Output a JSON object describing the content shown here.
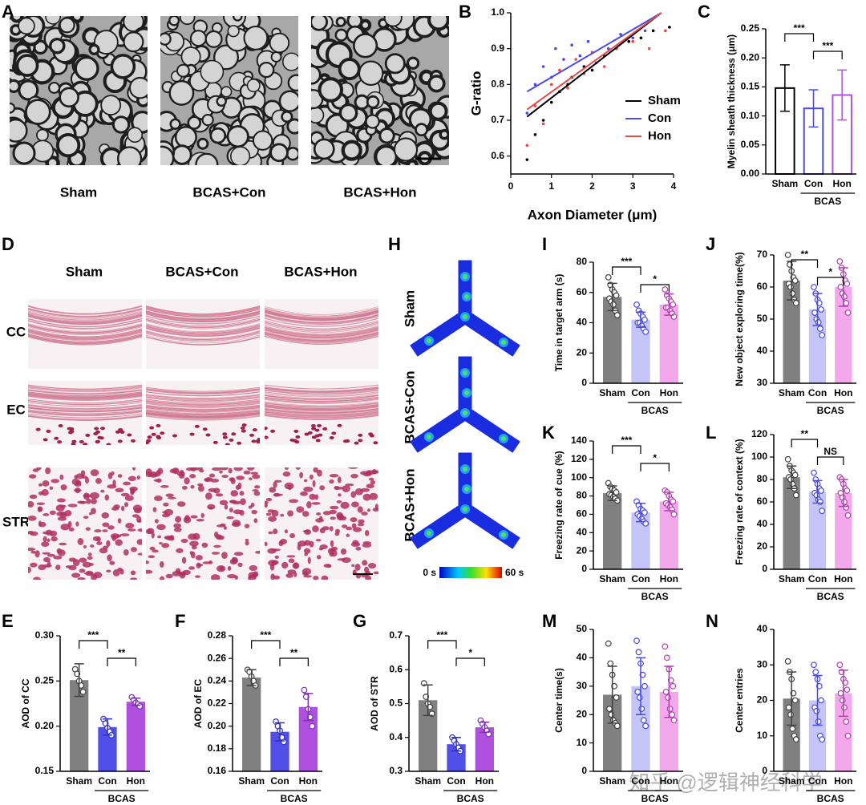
{
  "chart_data": [
    {
      "type": "scatter",
      "panel": "B",
      "xlabel": "Axon Diameter (μm)",
      "ylabel": "G-ratio",
      "xlim": [
        0,
        4
      ],
      "xticks": [
        0,
        1,
        2,
        3,
        4
      ],
      "ylim": [
        0.55,
        1.0
      ],
      "yticks": [
        0.6,
        0.7,
        0.8,
        0.9,
        {
          "value": 1.0,
          "label": "1.0"
        }
      ],
      "series": [
        {
          "name": "Sham",
          "color": "#000000",
          "x": [
            0.4,
            0.6,
            0.8,
            1.0,
            1.2,
            1.4,
            1.5,
            1.8,
            2.0,
            2.3,
            2.6,
            2.9,
            3.2,
            3.5,
            3.9
          ],
          "y": [
            0.59,
            0.66,
            0.7,
            0.75,
            0.78,
            0.8,
            0.82,
            0.85,
            0.84,
            0.88,
            0.9,
            0.92,
            0.93,
            0.95,
            0.96
          ],
          "fit_x": [
            0.4,
            3.7
          ],
          "fit_y": [
            0.71,
            1.0
          ]
        },
        {
          "name": "Con",
          "color": "#4a4ae8",
          "x": [
            0.4,
            0.6,
            0.8,
            1.0,
            1.1,
            1.3,
            1.5,
            1.7,
            1.9,
            2.1,
            2.4,
            2.7,
            3.0,
            3.3
          ],
          "y": [
            0.72,
            0.8,
            0.85,
            0.82,
            0.9,
            0.87,
            0.91,
            0.88,
            0.92,
            0.86,
            0.9,
            0.94,
            0.93,
            0.95
          ],
          "fit_x": [
            0.4,
            3.7
          ],
          "fit_y": [
            0.78,
            1.0
          ]
        },
        {
          "name": "Hon",
          "color": "#e84a4a",
          "x": [
            0.4,
            0.6,
            0.8,
            1.0,
            1.2,
            1.4,
            1.6,
            1.8,
            2.0,
            2.3,
            2.6,
            3.0,
            3.4,
            3.8
          ],
          "y": [
            0.63,
            0.74,
            0.69,
            0.8,
            0.84,
            0.79,
            0.87,
            0.83,
            0.89,
            0.85,
            0.9,
            0.92,
            0.9,
            0.95
          ],
          "fit_x": [
            0.4,
            3.7
          ],
          "fit_y": [
            0.73,
            1.0
          ]
        }
      ]
    },
    {
      "type": "bar",
      "panel": "C",
      "ylabel": "Myelin sheath thickness (μm)",
      "style": "outline",
      "categories": [
        "Sham",
        "Con",
        "Hon"
      ],
      "group_label": "BCAS",
      "values": [
        0.148,
        0.113,
        0.136
      ],
      "errors": [
        0.04,
        0.032,
        0.043
      ],
      "colors": [
        "#000000",
        "#4a4ae8",
        "#b050e0"
      ],
      "edge_colors": [
        "#000000",
        "#4a4ae8",
        "#b050e0"
      ],
      "ylim": [
        0,
        0.25
      ],
      "yticks": [
        {
          "value": 0,
          "label": "0.00"
        },
        {
          "value": 0.05,
          "label": "0.05"
        },
        {
          "value": 0.1,
          "label": "0.10"
        },
        {
          "value": 0.15,
          "label": "0.15"
        },
        {
          "value": 0.2,
          "label": "0.20"
        },
        {
          "value": 0.25,
          "label": "0.25"
        }
      ],
      "significance": [
        "***",
        "***"
      ]
    },
    {
      "type": "bar",
      "panel": "I",
      "ylabel": "Time in target arm (s)",
      "style": "filled",
      "categories": [
        "Sham",
        "Con",
        "Hon"
      ],
      "group_label": "BCAS",
      "values": [
        57,
        42,
        52
      ],
      "errors": [
        9,
        5,
        7
      ],
      "points": [
        [
          70,
          65,
          62,
          60,
          58,
          56,
          54,
          52,
          48,
          45
        ],
        [
          52,
          48,
          46,
          44,
          42,
          40,
          40,
          38,
          36,
          34
        ],
        [
          62,
          58,
          56,
          54,
          52,
          50,
          50,
          48,
          46,
          44
        ]
      ],
      "colors": [
        "#808080",
        "#c4c4f8",
        "#f4a8ec"
      ],
      "edge_colors": [
        "#404040",
        "#4a4ae0",
        "#b040b0"
      ],
      "ylim": [
        0,
        80
      ],
      "yticks": [
        0,
        20,
        40,
        60,
        80
      ],
      "significance": [
        "***",
        "*"
      ]
    },
    {
      "type": "bar",
      "panel": "J",
      "ylabel": "New object exploring time(%)",
      "style": "filled",
      "categories": [
        "Sham",
        "Con",
        "Hon"
      ],
      "group_label": "BCAS",
      "values": [
        62,
        53,
        60
      ],
      "errors": [
        6,
        5,
        6
      ],
      "points": [
        [
          70,
          67,
          65,
          63,
          62,
          61,
          60,
          58,
          56,
          55
        ],
        [
          60,
          58,
          56,
          55,
          53,
          52,
          50,
          49,
          47,
          45
        ],
        [
          68,
          66,
          64,
          62,
          61,
          60,
          58,
          57,
          55,
          52
        ]
      ],
      "colors": [
        "#808080",
        "#c4c4f8",
        "#f4a8ec"
      ],
      "edge_colors": [
        "#404040",
        "#4a4ae0",
        "#b040b0"
      ],
      "ylim": [
        30,
        70
      ],
      "yticks": [
        30,
        40,
        50,
        60,
        70
      ],
      "significance": [
        "**",
        "*"
      ]
    },
    {
      "type": "bar",
      "panel": "K",
      "ylabel": "Freezing rate of cue (%)",
      "style": "filled",
      "categories": [
        "Sham",
        "Con",
        "Hon"
      ],
      "group_label": "BCAS",
      "values": [
        83,
        62,
        74
      ],
      "errors": [
        8,
        10,
        10
      ],
      "points": [
        [
          94,
          90,
          88,
          86,
          84,
          82,
          81,
          79,
          77,
          75
        ],
        [
          74,
          70,
          66,
          64,
          62,
          60,
          58,
          55,
          52,
          50
        ],
        [
          86,
          84,
          80,
          76,
          74,
          72,
          70,
          68,
          65,
          60
        ]
      ],
      "colors": [
        "#808080",
        "#c4c4f8",
        "#f4a8ec"
      ],
      "edge_colors": [
        "#404040",
        "#4a4ae0",
        "#b040b0"
      ],
      "ylim": [
        0,
        140
      ],
      "yticks": [
        0,
        20,
        40,
        60,
        80,
        100,
        120,
        140
      ],
      "significance": [
        "***",
        "*"
      ]
    },
    {
      "type": "bar",
      "panel": "L",
      "ylabel": "Freezing rate of context (%)",
      "style": "filled",
      "categories": [
        "Sham",
        "Con",
        "Hon"
      ],
      "group_label": "BCAS",
      "values": [
        82,
        69,
        68
      ],
      "errors": [
        10,
        10,
        12
      ],
      "points": [
        [
          98,
          92,
          88,
          86,
          84,
          82,
          80,
          76,
          72,
          66
        ],
        [
          86,
          80,
          76,
          72,
          70,
          68,
          66,
          62,
          60,
          52
        ],
        [
          82,
          80,
          76,
          72,
          70,
          68,
          64,
          60,
          55,
          48
        ]
      ],
      "colors": [
        "#808080",
        "#c4c4f8",
        "#f4a8ec"
      ],
      "edge_colors": [
        "#404040",
        "#4a4ae0",
        "#b040b0"
      ],
      "ylim": [
        0,
        120
      ],
      "yticks": [
        0,
        20,
        40,
        60,
        80,
        100,
        120
      ],
      "significance": [
        "**",
        "NS"
      ]
    },
    {
      "type": "bar",
      "panel": "E",
      "ylabel": "AOD of CC",
      "style": "filled",
      "categories": [
        "Sham",
        "Con",
        "Hon"
      ],
      "group_label": "BCAS",
      "values": [
        0.251,
        0.199,
        0.227
      ],
      "errors": [
        0.018,
        0.009,
        0.004
      ],
      "points": [
        [
          0.263,
          0.258,
          0.25,
          0.245,
          0.238
        ],
        [
          0.208,
          0.203,
          0.198,
          0.194,
          0.19
        ],
        [
          0.232,
          0.229,
          0.226,
          0.224,
          0.222
        ]
      ],
      "colors": [
        "#808080",
        "#5050e8",
        "#b050e0"
      ],
      "edge_colors": [
        "#404040",
        "#3030c0",
        "#8030b0"
      ],
      "ylim": [
        0.15,
        0.3
      ],
      "yticks": [
        0.15,
        {
          "value": 0.2,
          "label": "0.20"
        },
        0.25,
        {
          "value": 0.3,
          "label": "0.30"
        }
      ],
      "significance": [
        "***",
        "**"
      ]
    },
    {
      "type": "bar",
      "panel": "F",
      "ylabel": "AOD of EC",
      "style": "filled",
      "categories": [
        "Sham",
        "Con",
        "Hon"
      ],
      "group_label": "BCAS",
      "values": [
        0.243,
        0.195,
        0.217
      ],
      "errors": [
        0.007,
        0.008,
        0.012
      ],
      "points": [
        [
          0.25,
          0.248,
          0.244,
          0.24,
          0.236
        ],
        [
          0.204,
          0.2,
          0.196,
          0.19,
          0.186
        ],
        [
          0.232,
          0.226,
          0.215,
          0.208,
          0.2
        ]
      ],
      "colors": [
        "#808080",
        "#5050e8",
        "#b050e0"
      ],
      "edge_colors": [
        "#404040",
        "#3030c0",
        "#8030b0"
      ],
      "ylim": [
        0.16,
        0.28
      ],
      "yticks": [
        0.16,
        0.18,
        {
          "value": 0.2,
          "label": "0.20"
        },
        0.22,
        0.24,
        0.26,
        0.28
      ],
      "significance": [
        "***",
        "**"
      ]
    },
    {
      "type": "bar",
      "panel": "G",
      "ylabel": "AOD of STR",
      "style": "filled",
      "categories": [
        "Sham",
        "Con",
        "Hon"
      ],
      "group_label": "BCAS",
      "values": [
        0.51,
        0.38,
        0.43
      ],
      "errors": [
        0.045,
        0.02,
        0.015
      ],
      "points": [
        [
          0.56,
          0.52,
          0.5,
          0.49,
          0.47
        ],
        [
          0.4,
          0.39,
          0.38,
          0.37,
          0.36
        ],
        [
          0.45,
          0.44,
          0.43,
          0.42,
          0.41
        ]
      ],
      "colors": [
        "#808080",
        "#5050e8",
        "#b050e0"
      ],
      "edge_colors": [
        "#404040",
        "#3030c0",
        "#8030b0"
      ],
      "ylim": [
        0.3,
        0.7
      ],
      "yticks": [
        0.3,
        0.4,
        0.5,
        0.6,
        0.7
      ],
      "significance": [
        "***",
        "*"
      ]
    },
    {
      "type": "bar",
      "panel": "M",
      "ylabel": "Center time(s)",
      "style": "filled",
      "categories": [
        "Sham",
        "Con",
        "Hon"
      ],
      "group_label": "BCAS",
      "values": [
        27,
        30,
        28
      ],
      "errors": [
        10,
        10,
        9
      ],
      "points": [
        [
          45,
          38,
          34,
          30,
          26,
          22,
          20,
          18,
          17,
          16
        ],
        [
          46,
          42,
          38,
          34,
          30,
          28,
          26,
          22,
          18,
          16
        ],
        [
          44,
          40,
          36,
          32,
          30,
          28,
          26,
          22,
          20,
          18
        ]
      ],
      "colors": [
        "#808080",
        "#c4c4f8",
        "#f4a8ec"
      ],
      "edge_colors": [
        "#404040",
        "#4a4ae0",
        "#b040b0"
      ],
      "ylim": [
        0,
        50
      ],
      "yticks": [
        0,
        10,
        20,
        30,
        40,
        50
      ],
      "significance": []
    },
    {
      "type": "bar",
      "panel": "N",
      "ylabel": "Center entries",
      "style": "filled",
      "categories": [
        "Sham",
        "Con",
        "Hon"
      ],
      "group_label": "BCAS",
      "values": [
        20.5,
        20,
        22
      ],
      "errors": [
        7.5,
        7,
        6.5
      ],
      "points": [
        [
          31,
          28,
          26,
          22,
          20,
          18,
          16,
          12,
          10,
          9
        ],
        [
          30,
          28,
          26,
          24,
          20,
          18,
          17,
          14,
          10,
          9
        ],
        [
          30,
          28,
          26,
          25,
          23,
          22,
          20,
          18,
          14,
          10
        ]
      ],
      "colors": [
        "#808080",
        "#c4c4f8",
        "#f4a8ec"
      ],
      "edge_colors": [
        "#404040",
        "#4a4ae0",
        "#b040b0"
      ],
      "ylim": [
        0,
        40
      ],
      "yticks": [
        0,
        10,
        20,
        30,
        40
      ],
      "significance": []
    }
  ],
  "image_panels": [
    {
      "panel": "A",
      "labels": [
        "Sham",
        "BCAS+Con",
        "BCAS+Hon"
      ]
    },
    {
      "panel": "D",
      "columns": [
        "Sham",
        "BCAS+Con",
        "BCAS+Hon"
      ],
      "rows": [
        "CC",
        "EC",
        "STR"
      ]
    },
    {
      "panel": "H",
      "rows": [
        "Sham",
        "BCAS+Con",
        "BCAS+Hon"
      ],
      "colorbar": [
        "0 s",
        "60 s"
      ]
    }
  ],
  "watermark": "知乎 @逻辑神经科学"
}
